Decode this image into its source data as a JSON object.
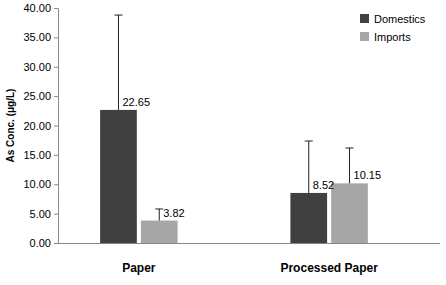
{
  "chart_data": {
    "type": "bar",
    "y_label": "As Conc. (μg/L)",
    "categories": [
      "Paper",
      "Processed Paper"
    ],
    "series": [
      {
        "name": "Domestics",
        "color": "#404040",
        "values": [
          22.65,
          8.52
        ],
        "errors": [
          16.15,
          8.84
        ]
      },
      {
        "name": "Imports",
        "color": "#a6a6a6",
        "values": [
          3.82,
          10.15
        ],
        "errors": [
          1.97,
          6.02
        ]
      }
    ],
    "ylim": [
      0,
      40
    ],
    "yticks": [
      {
        "value": 0,
        "label": "0.00"
      },
      {
        "value": 5,
        "label": "5.00"
      },
      {
        "value": 10,
        "label": "10.00"
      },
      {
        "value": 15,
        "label": "15.00"
      },
      {
        "value": 20,
        "label": "20.00"
      },
      {
        "value": 25,
        "label": "25.00"
      },
      {
        "value": 30,
        "label": "30.00"
      },
      {
        "value": 35,
        "label": "35.00"
      },
      {
        "value": 40,
        "label": "40.00"
      }
    ],
    "grid": false,
    "legend": "top-right",
    "data_labels": true
  }
}
